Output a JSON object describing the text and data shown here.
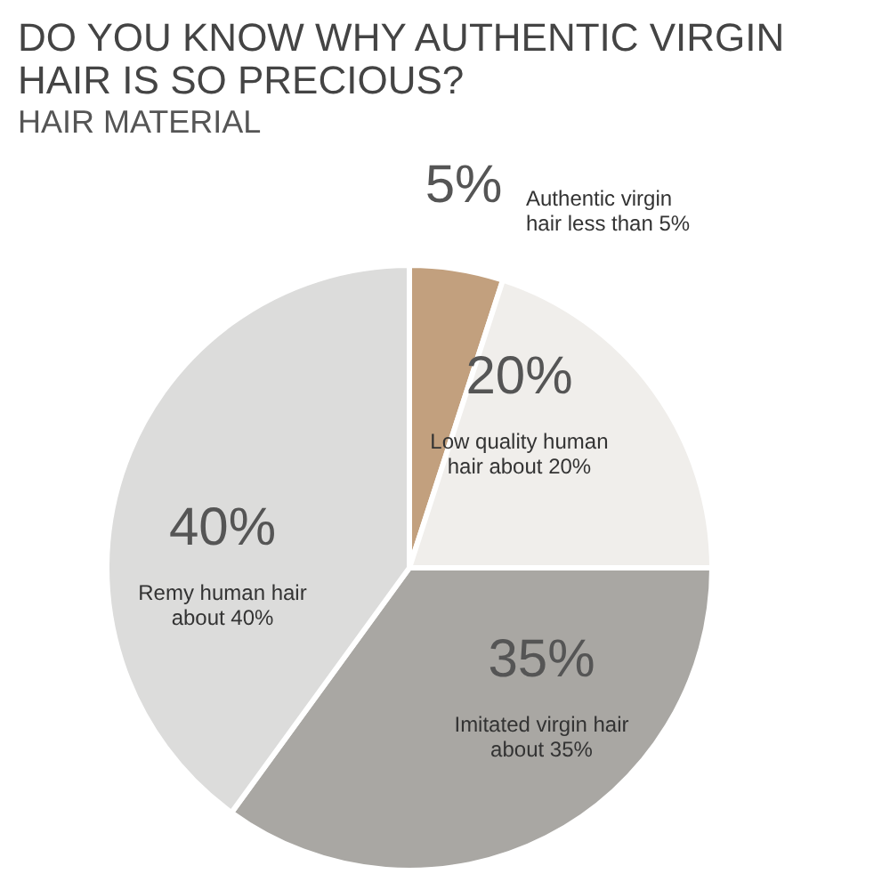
{
  "chart_data": {
    "type": "pie",
    "title": "DO YOU KNOW WHY AUTHENTIC VIRGIN HAIR IS SO PRECIOUS?",
    "subtitle": "HAIR MATERIAL",
    "categories": [
      "Authentic virgin hair less than 5%",
      "Low quality human hair about  20%",
      "Imitated virgin hair about 35%",
      "Remy human hair about 40%"
    ],
    "values": [
      5,
      20,
      35,
      40
    ],
    "colors": [
      "#c2a07e",
      "#f0eeeb",
      "#a9a7a3",
      "#dcdcdb"
    ],
    "value_labels": [
      "5%",
      "20%",
      "35%",
      "40%"
    ],
    "legend": false
  }
}
